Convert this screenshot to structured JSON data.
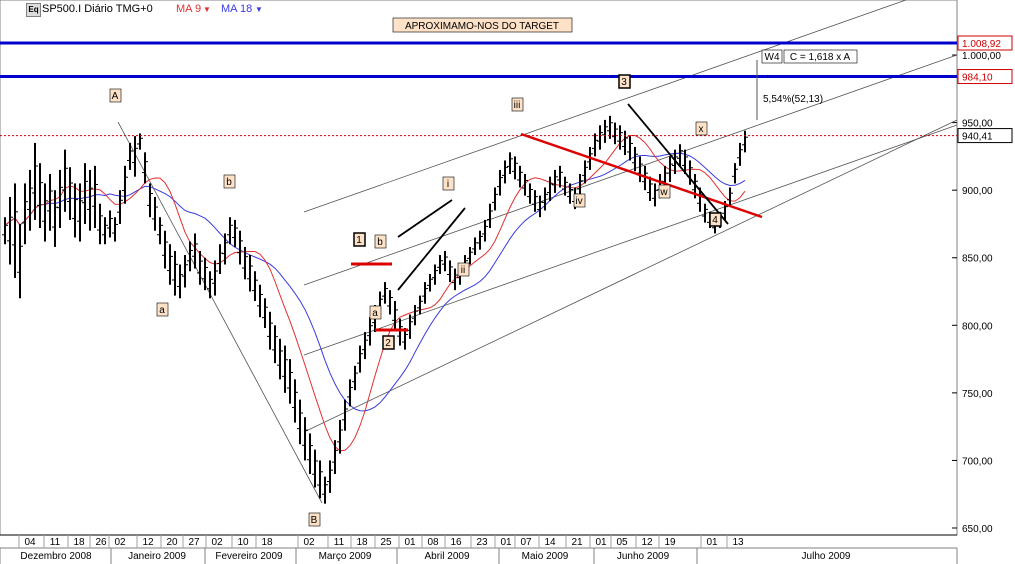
{
  "header": {
    "symbol_label": "SP500.I Diário TMG+0",
    "ma1_label": "MA 9",
    "ma2_label": "MA 18",
    "eq_badge": "Eq",
    "arrow_glyph": "▼"
  },
  "colors": {
    "ma9": "#e23030",
    "ma18": "#3a3ae0",
    "price": "#000000",
    "target_lines": "#0000cc",
    "dotted_line": "#cc0000",
    "annotation_fill": "#fde2c8",
    "red_marks": "#dd0000"
  },
  "annotations": {
    "banner": "APROXIMAMO-NOS DO TARGET",
    "w4_label": "W4",
    "c_label": "C = 1,618 x A",
    "pct_label": "5,54%(52,13)",
    "waves": [
      "A",
      "b",
      "a",
      "B",
      "1",
      "b",
      "a",
      "2",
      "i",
      "ii",
      "iii",
      "iv",
      "3",
      "w",
      "x",
      "4"
    ]
  },
  "chart_data": {
    "type": "candlestick",
    "title": "SP500.I Diário TMG+0",
    "ylim": [
      640,
      1020
    ],
    "y_ticks": [
      "650,00",
      "700,00",
      "750,00",
      "800,00",
      "850,00",
      "900,00",
      "950,00",
      "1.000,00"
    ],
    "x_ticks": [
      "04",
      "11",
      "18",
      "26",
      "02",
      "12",
      "20",
      "27",
      "02",
      "10",
      "18",
      "02",
      "11",
      "18",
      "25",
      "01",
      "08",
      "16",
      "23",
      "01",
      "07",
      "14",
      "21",
      "01",
      "05",
      "12",
      "19",
      "01",
      "13"
    ],
    "months": [
      "Dezembro 2008",
      "Janeiro 2009",
      "Fevereiro 2009",
      "Março 2009",
      "Abril 2009",
      "Maio 2009",
      "Junho 2009",
      "Julho 2009"
    ],
    "price_labels": {
      "upper_target": "1.008,92",
      "lower_target": "984,10",
      "last": "940,41"
    },
    "levels": {
      "upper_target": 1008.92,
      "lower_target": 984.1,
      "last": 940.41
    },
    "series": [
      {
        "name": "MA 9"
      },
      {
        "name": "MA 18"
      }
    ],
    "bars": [
      [
        880,
        860
      ],
      [
        895,
        845
      ],
      [
        905,
        835
      ],
      [
        875,
        820
      ],
      [
        905,
        860
      ],
      [
        915,
        870
      ],
      [
        935,
        878
      ],
      [
        920,
        872
      ],
      [
        905,
        862
      ],
      [
        912,
        870
      ],
      [
        900,
        858
      ],
      [
        915,
        872
      ],
      [
        930,
        884
      ],
      [
        917,
        878
      ],
      [
        905,
        865
      ],
      [
        905,
        862
      ],
      [
        920,
        875
      ],
      [
        915,
        870
      ],
      [
        918,
        872
      ],
      [
        890,
        860
      ],
      [
        880,
        860
      ],
      [
        885,
        865
      ],
      [
        880,
        862
      ],
      [
        900,
        875
      ],
      [
        918,
        890
      ],
      [
        935,
        915
      ],
      [
        940,
        910
      ],
      [
        942,
        930
      ],
      [
        928,
        905
      ],
      [
        905,
        880
      ],
      [
        895,
        870
      ],
      [
        880,
        860
      ],
      [
        870,
        842
      ],
      [
        860,
        830
      ],
      [
        855,
        822
      ],
      [
        845,
        820
      ],
      [
        852,
        828
      ],
      [
        862,
        840
      ],
      [
        868,
        842
      ],
      [
        855,
        830
      ],
      [
        850,
        826
      ],
      [
        840,
        820
      ],
      [
        848,
        822
      ],
      [
        860,
        838
      ],
      [
        868,
        845
      ],
      [
        880,
        860
      ],
      [
        878,
        858
      ],
      [
        870,
        845
      ],
      [
        858,
        834
      ],
      [
        852,
        825
      ],
      [
        840,
        818
      ],
      [
        830,
        806
      ],
      [
        820,
        798
      ],
      [
        810,
        782
      ],
      [
        800,
        772
      ],
      [
        790,
        760
      ],
      [
        785,
        750
      ],
      [
        775,
        742
      ],
      [
        760,
        728
      ],
      [
        745,
        712
      ],
      [
        732,
        700
      ],
      [
        720,
        690
      ],
      [
        708,
        680
      ],
      [
        700,
        672
      ],
      [
        688,
        668
      ],
      [
        700,
        676
      ],
      [
        715,
        690
      ],
      [
        730,
        705
      ],
      [
        745,
        722
      ],
      [
        760,
        740
      ],
      [
        770,
        752
      ],
      [
        785,
        765
      ],
      [
        795,
        775
      ],
      [
        806,
        785
      ],
      [
        815,
        795
      ],
      [
        825,
        806
      ],
      [
        832,
        816
      ],
      [
        826,
        808
      ],
      [
        818,
        796
      ],
      [
        805,
        785
      ],
      [
        798,
        782
      ],
      [
        808,
        790
      ],
      [
        815,
        800
      ],
      [
        822,
        808
      ],
      [
        832,
        816
      ],
      [
        838,
        825
      ],
      [
        845,
        830
      ],
      [
        852,
        838
      ],
      [
        855,
        840
      ],
      [
        848,
        832
      ],
      [
        842,
        826
      ],
      [
        845,
        830
      ],
      [
        852,
        838
      ],
      [
        858,
        845
      ],
      [
        865,
        852
      ],
      [
        870,
        856
      ],
      [
        878,
        862
      ],
      [
        890,
        872
      ],
      [
        902,
        885
      ],
      [
        915,
        896
      ],
      [
        922,
        905
      ],
      [
        928,
        912
      ],
      [
        925,
        908
      ],
      [
        918,
        902
      ],
      [
        912,
        896
      ],
      [
        905,
        890
      ],
      [
        900,
        884
      ],
      [
        896,
        880
      ],
      [
        902,
        885
      ],
      [
        910,
        892
      ],
      [
        915,
        898
      ],
      [
        918,
        902
      ],
      [
        910,
        896
      ],
      [
        905,
        890
      ],
      [
        902,
        886
      ],
      [
        912,
        895
      ],
      [
        922,
        905
      ],
      [
        932,
        915
      ],
      [
        942,
        925
      ],
      [
        948,
        930
      ],
      [
        952,
        935
      ],
      [
        955,
        938
      ],
      [
        950,
        934
      ],
      [
        948,
        930
      ],
      [
        944,
        926
      ],
      [
        940,
        922
      ],
      [
        932,
        914
      ],
      [
        925,
        906
      ],
      [
        918,
        900
      ],
      [
        910,
        892
      ],
      [
        905,
        888
      ],
      [
        912,
        894
      ],
      [
        918,
        900
      ],
      [
        925,
        906
      ],
      [
        930,
        912
      ],
      [
        934,
        918
      ],
      [
        930,
        912
      ],
      [
        922,
        904
      ],
      [
        912,
        894
      ],
      [
        902,
        884
      ],
      [
        890,
        876
      ],
      [
        884,
        872
      ],
      [
        880,
        868
      ],
      [
        884,
        872
      ],
      [
        892,
        878
      ],
      [
        902,
        888
      ],
      [
        920,
        905
      ],
      [
        935,
        918
      ],
      [
        944,
        928
      ]
    ]
  }
}
